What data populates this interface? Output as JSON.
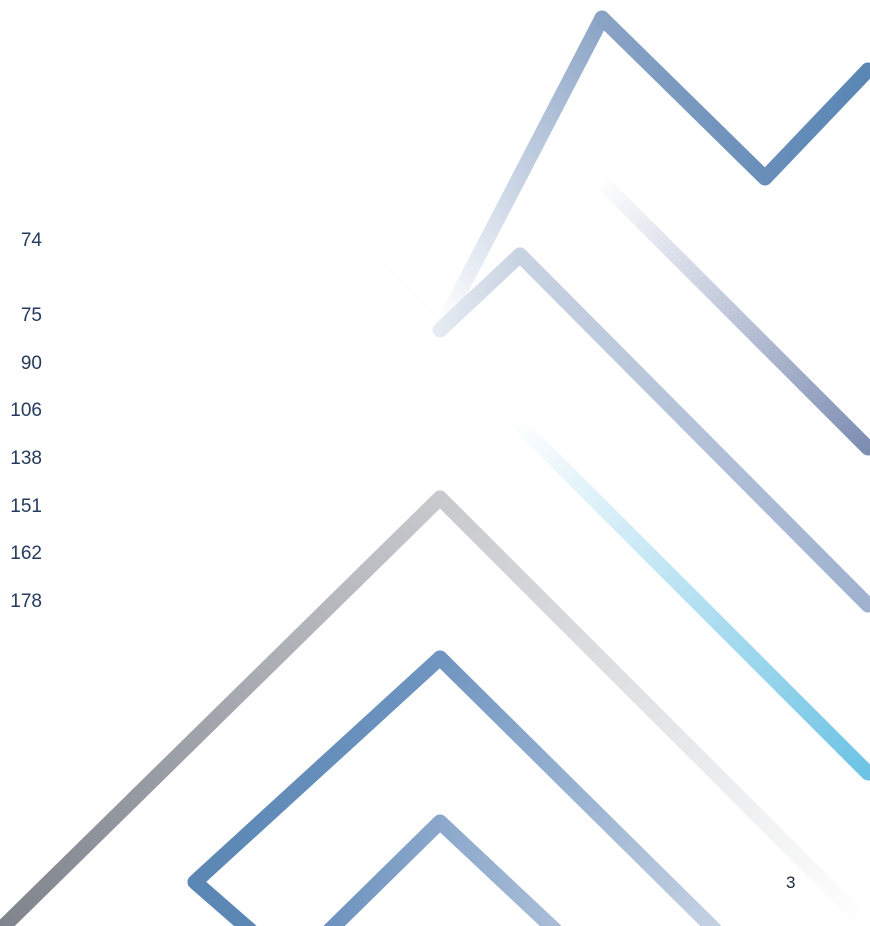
{
  "toc": {
    "page_numbers": [
      "74",
      "75",
      "90",
      "106",
      "138",
      "151",
      "162",
      "178"
    ]
  },
  "footer": {
    "page_number": "3"
  },
  "colors": {
    "text": "#243a5e",
    "steel_blue": "#5a86b4",
    "slate": "#7d8db2",
    "light_gray": "#c9ccd3",
    "sky_blue": "#6cc3e4",
    "gray": "#8a8f98"
  }
}
